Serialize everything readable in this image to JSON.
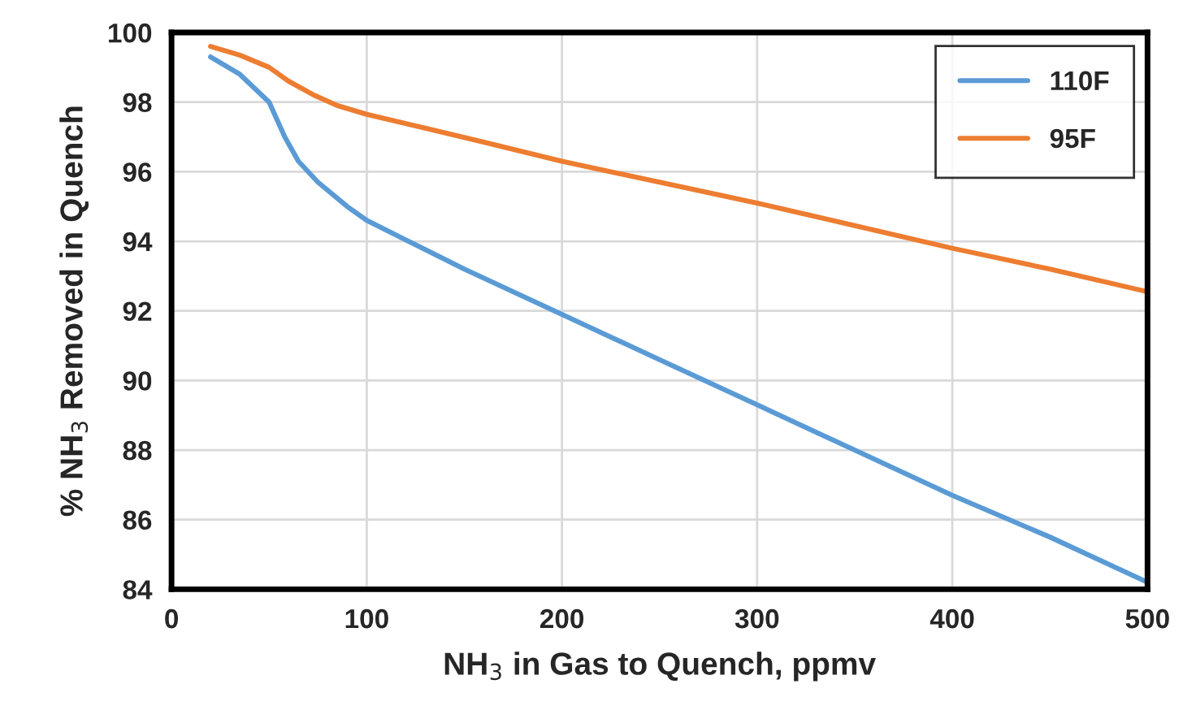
{
  "chart_data": {
    "type": "line",
    "xlabel": "NH$_{3}$ in Gas to Quench, ppmv",
    "ylabel": "% NH$_{3}$ Removed in Quench",
    "xlim": [
      0,
      500
    ],
    "xticks": [
      0,
      100,
      200,
      300,
      400,
      500
    ],
    "ylim": [
      84,
      100
    ],
    "yticks": [
      84,
      86,
      88,
      90,
      92,
      94,
      96,
      98,
      100
    ],
    "grid": true,
    "legend": "top right",
    "marker": "none",
    "line_style": "solid",
    "series": [
      {
        "name": "110F",
        "color": "#5b9bd5",
        "x": [
          20,
          35,
          50,
          58,
          65,
          75,
          90,
          100,
          125,
          150,
          200,
          250,
          300,
          350,
          400,
          450,
          500
        ],
        "values": [
          99.3,
          98.8,
          98.0,
          97.0,
          96.3,
          95.7,
          95.0,
          94.6,
          93.9,
          93.2,
          91.9,
          90.6,
          89.3,
          88.0,
          86.7,
          85.5,
          84.2
        ]
      },
      {
        "name": "95F",
        "color": "#ed7d31",
        "x": [
          20,
          35,
          50,
          60,
          73,
          85,
          100,
          130,
          160,
          200,
          250,
          300,
          350,
          400,
          450,
          500
        ],
        "values": [
          99.6,
          99.35,
          99.0,
          98.6,
          98.2,
          97.9,
          97.65,
          97.25,
          96.85,
          96.3,
          95.7,
          95.1,
          94.45,
          93.8,
          93.2,
          92.55
        ]
      }
    ]
  }
}
